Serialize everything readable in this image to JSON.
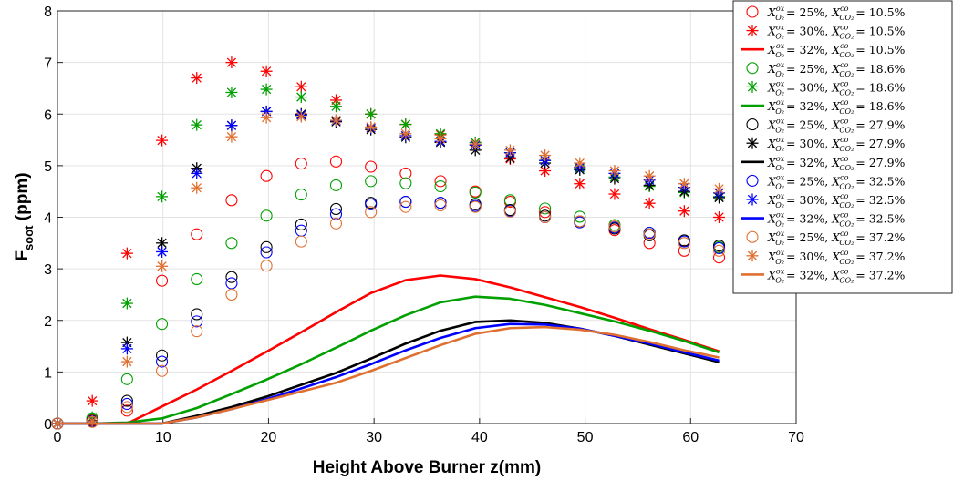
{
  "chart_data": {
    "type": "scatter",
    "title": "",
    "xlabel": "Height Above Burner z(mm)",
    "ylabel_main": "F",
    "ylabel_sub": "soot",
    "ylabel_tail": " (ppm)",
    "xlim": [
      0,
      70
    ],
    "ylim": [
      0,
      8
    ],
    "xticks": [
      "0",
      "10",
      "20",
      "30",
      "40",
      "50",
      "60",
      "70"
    ],
    "yticks": [
      "0",
      "1",
      "2",
      "3",
      "4",
      "5",
      "6",
      "7",
      "8"
    ],
    "grid": true,
    "legend_position": "top-right",
    "colors": {
      "10.5": "#ff0000",
      "18.6": "#00a000",
      "27.9": "#000000",
      "32.5": "#0000ff",
      "37.2": "#e07030"
    },
    "series": [
      {
        "name": "X_O2^ox = 25%, X_CO2^co = 10.5%",
        "label": "= 25%, ",
        "label2": "= 10.5%",
        "marker": "circle",
        "color": "#ff0000",
        "x": [
          0,
          3.3,
          6.6,
          9.9,
          13.2,
          16.5,
          19.8,
          23.1,
          26.4,
          29.7,
          33,
          36.3,
          39.6,
          42.9,
          46.2,
          49.5,
          52.8,
          56.1,
          59.4,
          62.7
        ],
        "y": [
          0,
          0.07,
          0.25,
          2.77,
          3.67,
          4.33,
          4.8,
          5.04,
          5.08,
          4.98,
          4.85,
          4.7,
          4.5,
          4.3,
          4.1,
          3.92,
          3.75,
          3.5,
          3.35,
          3.22
        ]
      },
      {
        "name": "X_O2^ox = 30%, X_CO2^co = 10.5%",
        "label": "= 30%, ",
        "label2": "= 10.5%",
        "marker": "asterisk",
        "color": "#ff0000",
        "x": [
          0,
          3.3,
          6.6,
          9.9,
          13.2,
          16.5,
          19.8,
          23.1,
          26.4,
          29.7,
          33,
          36.3,
          39.6,
          42.9,
          46.2,
          49.5,
          52.8,
          56.1,
          59.4,
          62.7
        ],
        "y": [
          0,
          0.44,
          3.3,
          5.49,
          6.7,
          7.0,
          6.83,
          6.53,
          6.27,
          6.0,
          5.8,
          5.6,
          5.4,
          5.13,
          4.9,
          4.65,
          4.45,
          4.27,
          4.12,
          4.0
        ]
      },
      {
        "name": "X_O2^ox = 32%, X_CO2^co = 10.5%",
        "label": "= 32%, ",
        "label2": "= 10.5%",
        "marker": "line",
        "color": "#ff0000",
        "x": [
          0,
          3.3,
          6.6,
          9.9,
          13.2,
          16.5,
          19.8,
          23.1,
          26.4,
          29.7,
          33,
          36.3,
          39.6,
          42.9,
          46.2,
          49.5,
          52.8,
          56.1,
          59.4,
          62.7
        ],
        "y": [
          0,
          0,
          0,
          0.33,
          0.66,
          1.02,
          1.39,
          1.77,
          2.16,
          2.53,
          2.78,
          2.87,
          2.8,
          2.64,
          2.45,
          2.26,
          2.05,
          1.83,
          1.62,
          1.4
        ]
      },
      {
        "name": "X_O2^ox = 25%, X_CO2^co = 18.6%",
        "label": "= 25%, ",
        "label2": "= 18.6%",
        "marker": "circle",
        "color": "#00a000",
        "x": [
          0,
          3.3,
          6.6,
          9.9,
          13.2,
          16.5,
          19.8,
          23.1,
          26.4,
          29.7,
          33,
          36.3,
          39.6,
          42.9,
          46.2,
          49.5,
          52.8,
          56.1,
          59.4,
          62.7
        ],
        "y": [
          0,
          0.1,
          0.86,
          1.93,
          2.8,
          3.5,
          4.03,
          4.44,
          4.62,
          4.7,
          4.66,
          4.6,
          4.48,
          4.33,
          4.17,
          4.01,
          3.85,
          3.7,
          3.55,
          3.42
        ]
      },
      {
        "name": "X_O2^ox = 30%, X_CO2^co = 18.6%",
        "label": "= 30%, ",
        "label2": "= 18.6%",
        "marker": "asterisk",
        "color": "#00a000",
        "x": [
          0,
          3.3,
          6.6,
          9.9,
          13.2,
          16.5,
          19.8,
          23.1,
          26.4,
          29.7,
          33,
          36.3,
          39.6,
          42.9,
          46.2,
          49.5,
          52.8,
          56.1,
          59.4,
          62.7
        ],
        "y": [
          0,
          0.12,
          2.33,
          4.4,
          5.79,
          6.42,
          6.48,
          6.33,
          6.15,
          6.0,
          5.8,
          5.62,
          5.45,
          5.25,
          5.1,
          4.95,
          4.78,
          4.6,
          4.48,
          4.4
        ]
      },
      {
        "name": "X_O2^ox = 32%, X_CO2^co = 18.6%",
        "label": "= 32%, ",
        "label2": "= 18.6%",
        "marker": "line",
        "color": "#00a000",
        "x": [
          0,
          3.3,
          6.6,
          9.9,
          13.2,
          16.5,
          19.8,
          23.1,
          26.4,
          29.7,
          33,
          36.3,
          39.6,
          42.9,
          46.2,
          49.5,
          52.8,
          56.1,
          59.4,
          62.7
        ],
        "y": [
          0,
          0,
          0.02,
          0.1,
          0.3,
          0.57,
          0.85,
          1.15,
          1.47,
          1.8,
          2.1,
          2.35,
          2.46,
          2.42,
          2.3,
          2.14,
          1.98,
          1.8,
          1.6,
          1.38
        ]
      },
      {
        "name": "X_O2^ox = 25%, X_CO2^co = 27.9%",
        "label": "= 25%, ",
        "label2": "= 27.9%",
        "marker": "circle",
        "color": "#000000",
        "x": [
          0,
          3.3,
          6.6,
          9.9,
          13.2,
          16.5,
          19.8,
          23.1,
          26.4,
          29.7,
          33,
          36.3,
          39.6,
          42.9,
          46.2,
          49.5,
          52.8,
          56.1,
          59.4,
          62.7
        ],
        "y": [
          0,
          0.05,
          0.44,
          1.32,
          2.12,
          2.84,
          3.42,
          3.86,
          4.16,
          4.28,
          4.3,
          4.28,
          4.25,
          4.14,
          4.03,
          3.92,
          3.78,
          3.65,
          3.55,
          3.45
        ]
      },
      {
        "name": "X_O2^ox = 30%, X_CO2^co = 27.9%",
        "label": "= 30%, ",
        "label2": "= 27.9%",
        "marker": "asterisk",
        "color": "#000000",
        "x": [
          0,
          3.3,
          6.6,
          9.9,
          13.2,
          16.5,
          19.8,
          23.1,
          26.4,
          29.7,
          33,
          36.3,
          39.6,
          42.9,
          46.2,
          49.5,
          52.8,
          56.1,
          59.4,
          62.7
        ],
        "y": [
          0,
          0.06,
          1.57,
          3.5,
          4.95,
          5.78,
          6.05,
          6.0,
          5.85,
          5.7,
          5.55,
          5.45,
          5.3,
          5.15,
          5.05,
          4.92,
          4.75,
          4.62,
          4.5,
          4.38
        ]
      },
      {
        "name": "X_O2^ox = 32%, X_CO2^co = 27.9%",
        "label": "= 32%, ",
        "label2": "= 27.9%",
        "marker": "line",
        "color": "#000000",
        "x": [
          0,
          3.3,
          6.6,
          9.9,
          13.2,
          16.5,
          19.8,
          23.1,
          26.4,
          29.7,
          33,
          36.3,
          39.6,
          42.9,
          46.2,
          49.5,
          52.8,
          56.1,
          59.4,
          62.7
        ],
        "y": [
          0,
          0,
          0,
          0,
          0.15,
          0.32,
          0.52,
          0.75,
          0.98,
          1.26,
          1.55,
          1.8,
          1.97,
          2.0,
          1.95,
          1.84,
          1.7,
          1.53,
          1.36,
          1.19
        ]
      },
      {
        "name": "X_O2^ox = 25%, X_CO2^co = 32.5%",
        "label": "= 25%, ",
        "label2": "= 32.5%",
        "marker": "circle",
        "color": "#0000ff",
        "x": [
          0,
          3.3,
          6.6,
          9.9,
          13.2,
          16.5,
          19.8,
          23.1,
          26.4,
          29.7,
          33,
          36.3,
          39.6,
          42.9,
          46.2,
          49.5,
          52.8,
          56.1,
          59.4,
          62.7
        ],
        "y": [
          0,
          0.04,
          0.38,
          1.2,
          1.98,
          2.72,
          3.32,
          3.74,
          4.06,
          4.25,
          4.3,
          4.28,
          4.22,
          4.12,
          4.0,
          3.9,
          3.8,
          3.7,
          3.53,
          3.4
        ]
      },
      {
        "name": "X_O2^ox = 30%, X_CO2^co = 32.5%",
        "label": "= 30%, ",
        "label2": "= 32.5%",
        "marker": "asterisk",
        "color": "#0000ff",
        "x": [
          0,
          3.3,
          6.6,
          9.9,
          13.2,
          16.5,
          19.8,
          23.1,
          26.4,
          29.7,
          33,
          36.3,
          39.6,
          42.9,
          46.2,
          49.5,
          52.8,
          56.1,
          59.4,
          62.7
        ],
        "y": [
          0,
          0.05,
          1.45,
          3.33,
          4.85,
          5.78,
          6.05,
          5.98,
          5.87,
          5.73,
          5.58,
          5.47,
          5.4,
          5.25,
          5.1,
          4.97,
          4.85,
          4.72,
          4.58,
          4.47
        ]
      },
      {
        "name": "X_O2^ox = 32%, X_CO2^co = 32.5%",
        "label": "= 32%, ",
        "label2": "= 32.5%",
        "marker": "line",
        "color": "#0000ff",
        "x": [
          0,
          3.3,
          6.6,
          9.9,
          13.2,
          16.5,
          19.8,
          23.1,
          26.4,
          29.7,
          33,
          36.3,
          39.6,
          42.9,
          46.2,
          49.5,
          52.8,
          56.1,
          59.4,
          62.7
        ],
        "y": [
          0,
          0,
          0,
          0,
          0.12,
          0.28,
          0.47,
          0.68,
          0.9,
          1.15,
          1.42,
          1.66,
          1.85,
          1.93,
          1.92,
          1.84,
          1.7,
          1.55,
          1.38,
          1.22
        ]
      },
      {
        "name": "X_O2^ox = 25%, X_CO2^co = 37.2%",
        "label": "= 25%, ",
        "label2": "= 37.2%",
        "marker": "circle",
        "color": "#e07030",
        "x": [
          0,
          3.3,
          6.6,
          9.9,
          13.2,
          16.5,
          19.8,
          23.1,
          26.4,
          29.7,
          33,
          36.3,
          39.6,
          42.9,
          46.2,
          49.5,
          52.8,
          56.1,
          59.4,
          62.7
        ],
        "y": [
          0,
          0.03,
          0.32,
          1.02,
          1.79,
          2.5,
          3.06,
          3.53,
          3.88,
          4.1,
          4.2,
          4.23,
          4.2,
          4.11,
          4.0,
          3.92,
          3.82,
          3.67,
          3.5,
          3.35
        ]
      },
      {
        "name": "X_O2^ox = 30%, X_CO2^co = 37.2%",
        "label": "= 30%, ",
        "label2": "= 37.2%",
        "marker": "asterisk",
        "color": "#e07030",
        "x": [
          0,
          3.3,
          6.6,
          9.9,
          13.2,
          16.5,
          19.8,
          23.1,
          26.4,
          29.7,
          33,
          36.3,
          39.6,
          42.9,
          46.2,
          49.5,
          52.8,
          56.1,
          59.4,
          62.7
        ],
        "y": [
          0,
          0.05,
          1.2,
          3.05,
          4.57,
          5.56,
          5.93,
          5.95,
          5.88,
          5.75,
          5.62,
          5.52,
          5.42,
          5.3,
          5.2,
          5.05,
          4.9,
          4.8,
          4.65,
          4.55
        ]
      },
      {
        "name": "X_O2^ox = 32%, X_CO2^co = 37.2%",
        "label": "= 32%, ",
        "label2": "= 37.2%",
        "marker": "line",
        "color": "#e07030",
        "x": [
          0,
          3.3,
          6.6,
          9.9,
          13.2,
          16.5,
          19.8,
          23.1,
          26.4,
          29.7,
          33,
          36.3,
          39.6,
          42.9,
          46.2,
          49.5,
          52.8,
          56.1,
          59.4,
          62.7
        ],
        "y": [
          0,
          0,
          0,
          0,
          0.12,
          0.28,
          0.45,
          0.62,
          0.79,
          1.02,
          1.27,
          1.52,
          1.74,
          1.85,
          1.87,
          1.82,
          1.72,
          1.58,
          1.42,
          1.28
        ]
      }
    ]
  }
}
